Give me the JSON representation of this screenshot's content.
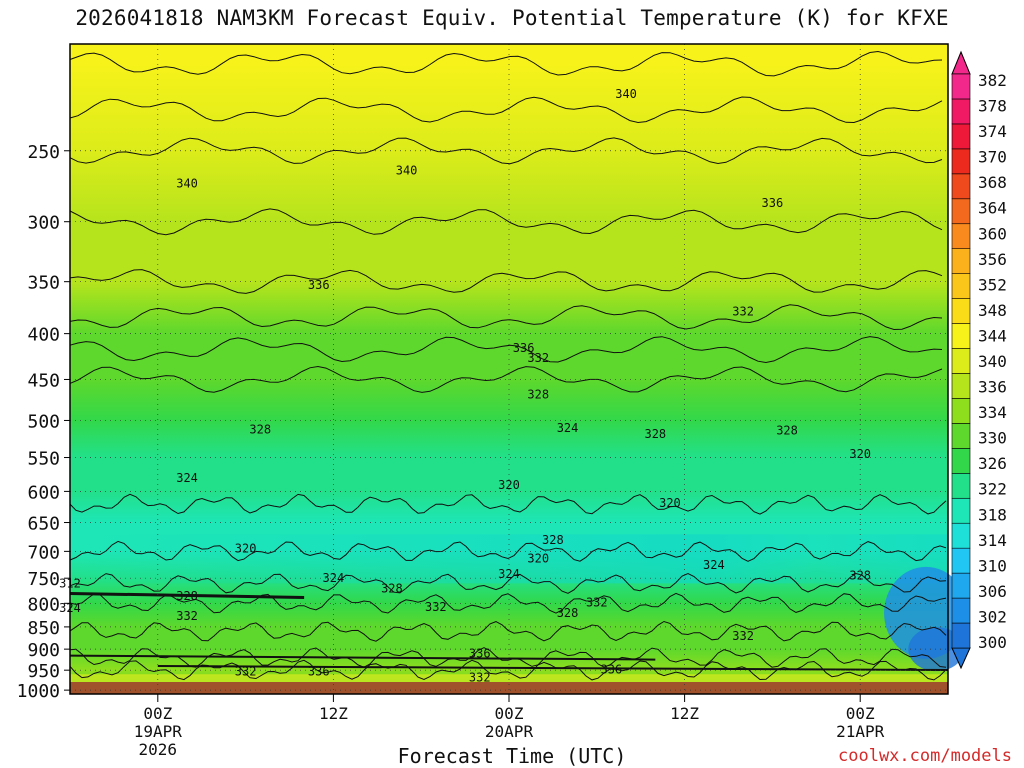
{
  "title": "2026041818 NAM3KM Forecast Equiv. Potential Temperature (K) for KFXE",
  "xlabel": "Forecast Time (UTC)",
  "credit": "coolwx.com/models",
  "chart_data": {
    "type": "heatmap",
    "title": "2026041818 NAM3KM Forecast Equiv. Potential Temperature (K) for KFXE",
    "xlabel": "Forecast Time (UTC)",
    "ylabel": "",
    "x_ticks": [
      {
        "hour": 6,
        "lines": [
          "00Z",
          "19APR",
          "2026"
        ]
      },
      {
        "hour": 18,
        "lines": [
          "12Z"
        ]
      },
      {
        "hour": 30,
        "lines": [
          "00Z",
          "20APR"
        ]
      },
      {
        "hour": 42,
        "lines": [
          "12Z"
        ]
      },
      {
        "hour": 54,
        "lines": [
          "00Z",
          "21APR"
        ]
      }
    ],
    "xlim_hours": [
      0,
      60
    ],
    "y_scale": "log-pressure",
    "ylim": [
      1010,
      190
    ],
    "y_ticks": [
      250,
      300,
      350,
      400,
      450,
      500,
      550,
      600,
      650,
      700,
      750,
      800,
      850,
      900,
      950,
      1000
    ],
    "colorbar_levels": [
      300,
      302,
      306,
      310,
      314,
      318,
      322,
      326,
      330,
      334,
      336,
      340,
      344,
      348,
      352,
      356,
      360,
      364,
      368,
      370,
      374,
      378,
      382
    ],
    "colorbar_labels": [
      382,
      378,
      374,
      370,
      368,
      364,
      360,
      356,
      352,
      348,
      344,
      340,
      336,
      334,
      330,
      326,
      322,
      318,
      314,
      310,
      306,
      302,
      300
    ],
    "colorbar_colors": [
      "#1e74d8",
      "#1e8fe6",
      "#20a8ef",
      "#22c6f3",
      "#1ee0d8",
      "#1ee6b6",
      "#22e08a",
      "#32d84a",
      "#5ed82c",
      "#8ede1e",
      "#b6e41c",
      "#dcec1a",
      "#f6f21a",
      "#fadc18",
      "#fbc61a",
      "#fbb11c",
      "#f98a1e",
      "#f36a1e",
      "#ef4a1e",
      "#ec2a1e",
      "#ee1838",
      "#f01a64",
      "#f2288a"
    ],
    "profile": [
      {
        "p": 1000,
        "theta_e": 332
      },
      {
        "p": 950,
        "theta_e": 334
      },
      {
        "p": 900,
        "theta_e": 332
      },
      {
        "p": 850,
        "theta_e": 330
      },
      {
        "p": 800,
        "theta_e": 326
      },
      {
        "p": 750,
        "theta_e": 322
      },
      {
        "p": 700,
        "theta_e": 318
      },
      {
        "p": 650,
        "theta_e": 320
      },
      {
        "p": 600,
        "theta_e": 322
      },
      {
        "p": 550,
        "theta_e": 324
      },
      {
        "p": 500,
        "theta_e": 328
      },
      {
        "p": 450,
        "theta_e": 330
      },
      {
        "p": 400,
        "theta_e": 333
      },
      {
        "p": 350,
        "theta_e": 336
      },
      {
        "p": 300,
        "theta_e": 338
      },
      {
        "p": 250,
        "theta_e": 340
      },
      {
        "p": 200,
        "theta_e": 344
      }
    ],
    "contour_labels": [
      {
        "text": "340",
        "hour": 8,
        "p": 272
      },
      {
        "text": "340",
        "hour": 23,
        "p": 263
      },
      {
        "text": "340",
        "hour": 38,
        "p": 216
      },
      {
        "text": "336",
        "hour": 17,
        "p": 353
      },
      {
        "text": "336",
        "hour": 48,
        "p": 286
      },
      {
        "text": "336",
        "hour": 31,
        "p": 415
      },
      {
        "text": "332",
        "hour": 32,
        "p": 426
      },
      {
        "text": "332",
        "hour": 46,
        "p": 378
      },
      {
        "text": "328",
        "hour": 32,
        "p": 468
      },
      {
        "text": "328",
        "hour": 13,
        "p": 512
      },
      {
        "text": "328",
        "hour": 40,
        "p": 518
      },
      {
        "text": "328",
        "hour": 49,
        "p": 513
      },
      {
        "text": "328",
        "hour": 33,
        "p": 680
      },
      {
        "text": "328",
        "hour": 54,
        "p": 745
      },
      {
        "text": "328",
        "hour": 8,
        "p": 785
      },
      {
        "text": "328",
        "hour": 22,
        "p": 770
      },
      {
        "text": "328",
        "hour": 34,
        "p": 820
      },
      {
        "text": "324",
        "hour": 8,
        "p": 580
      },
      {
        "text": "324",
        "hour": 34,
        "p": 510
      },
      {
        "text": "324",
        "hour": 18,
        "p": 750
      },
      {
        "text": "324",
        "hour": 30,
        "p": 742
      },
      {
        "text": "324",
        "hour": 44,
        "p": 725
      },
      {
        "text": "324",
        "hour": 0,
        "p": 810
      },
      {
        "text": "320",
        "hour": 30,
        "p": 590
      },
      {
        "text": "320",
        "hour": 41,
        "p": 618
      },
      {
        "text": "320",
        "hour": 54,
        "p": 545
      },
      {
        "text": "320",
        "hour": 12,
        "p": 695
      },
      {
        "text": "320",
        "hour": 32,
        "p": 713
      },
      {
        "text": "312",
        "hour": 0,
        "p": 760
      },
      {
        "text": "332",
        "hour": 8,
        "p": 827
      },
      {
        "text": "332",
        "hour": 25,
        "p": 808
      },
      {
        "text": "332",
        "hour": 36,
        "p": 798
      },
      {
        "text": "332",
        "hour": 46,
        "p": 870
      },
      {
        "text": "332",
        "hour": 12,
        "p": 953
      },
      {
        "text": "332",
        "hour": 28,
        "p": 968
      },
      {
        "text": "336",
        "hour": 17,
        "p": 953
      },
      {
        "text": "336",
        "hour": 28,
        "p": 910
      },
      {
        "text": "336",
        "hour": 37,
        "p": 948
      }
    ]
  }
}
